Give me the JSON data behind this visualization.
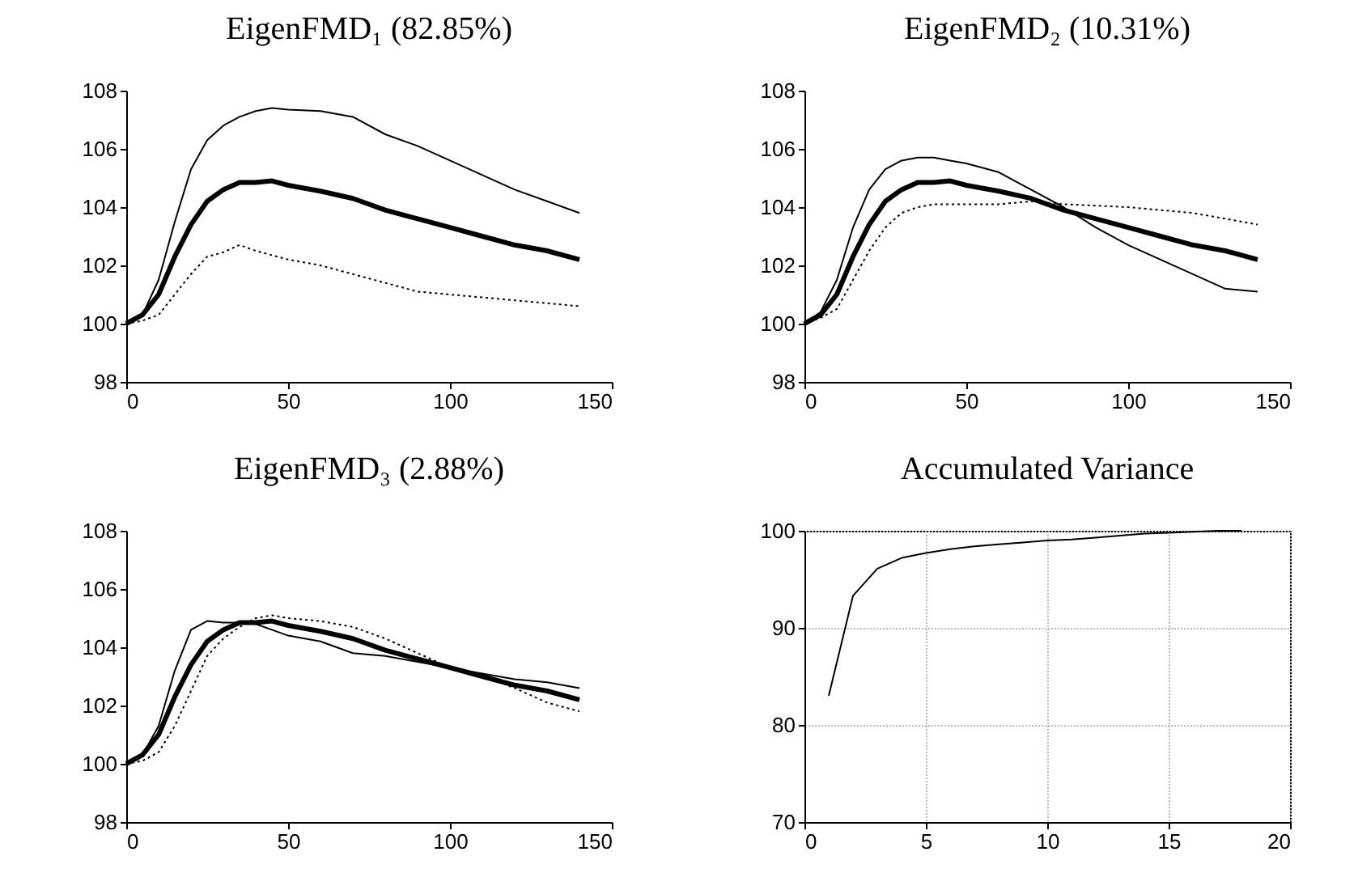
{
  "chart_data": [
    {
      "type": "line",
      "title": "EigenFMD₁ (82.85%)",
      "x": [
        0,
        5,
        10,
        15,
        20,
        25,
        30,
        35,
        40,
        45,
        50,
        60,
        70,
        80,
        90,
        100,
        110,
        120,
        130,
        140
      ],
      "xlim": [
        0,
        150
      ],
      "xticks": [
        0,
        50,
        100,
        150
      ],
      "ylim": [
        98,
        108
      ],
      "yticks": [
        98,
        100,
        102,
        104,
        106,
        108
      ],
      "grid": false,
      "marker": "none",
      "series": [
        {
          "color": "#000000",
          "line_style": "solid",
          "values": [
            100,
            100.3,
            101,
            102.3,
            103.4,
            104.2,
            104.6,
            104.85,
            104.85,
            104.9,
            104.75,
            104.55,
            104.3,
            103.9,
            103.6,
            103.3,
            103.0,
            102.7,
            102.5,
            102.2
          ]
        },
        {
          "color": "#000000",
          "line_style": "solid",
          "values": [
            100,
            100.3,
            101.5,
            103.5,
            105.3,
            106.3,
            106.8,
            107.1,
            107.3,
            107.4,
            107.35,
            107.3,
            107.1,
            106.5,
            106.1,
            105.6,
            105.1,
            104.6,
            104.2,
            103.8
          ]
        },
        {
          "color": "#000000",
          "line_style": "dotted",
          "values": [
            100,
            100.1,
            100.3,
            101.0,
            101.7,
            102.3,
            102.45,
            102.7,
            102.5,
            102.35,
            102.2,
            102.0,
            101.7,
            101.4,
            101.1,
            101.0,
            100.9,
            100.8,
            100.7,
            100.6
          ]
        }
      ]
    },
    {
      "type": "line",
      "title": "EigenFMD₂ (10.31%)",
      "x": [
        0,
        5,
        10,
        15,
        20,
        25,
        30,
        35,
        40,
        45,
        50,
        60,
        70,
        80,
        90,
        100,
        110,
        120,
        130,
        140
      ],
      "xlim": [
        0,
        150
      ],
      "xticks": [
        0,
        50,
        100,
        150
      ],
      "ylim": [
        98,
        108
      ],
      "yticks": [
        98,
        100,
        102,
        104,
        106,
        108
      ],
      "grid": false,
      "marker": "none",
      "series": [
        {
          "color": "#000000",
          "line_style": "solid",
          "values": [
            100,
            100.3,
            101,
            102.3,
            103.4,
            104.2,
            104.6,
            104.85,
            104.85,
            104.9,
            104.75,
            104.55,
            104.3,
            103.9,
            103.6,
            103.3,
            103.0,
            102.7,
            102.5,
            102.2
          ]
        },
        {
          "color": "#000000",
          "line_style": "solid",
          "values": [
            100,
            100.4,
            101.5,
            103.3,
            104.6,
            105.3,
            105.6,
            105.7,
            105.7,
            105.6,
            105.5,
            105.2,
            104.6,
            104.0,
            103.3,
            102.7,
            102.2,
            101.7,
            101.2,
            101.1
          ]
        },
        {
          "color": "#000000",
          "line_style": "dotted",
          "values": [
            100,
            100.2,
            100.5,
            101.5,
            102.5,
            103.3,
            103.8,
            104.0,
            104.1,
            104.1,
            104.1,
            104.1,
            104.2,
            104.1,
            104.05,
            104.0,
            103.9,
            103.8,
            103.6,
            103.4
          ]
        }
      ]
    },
    {
      "type": "line",
      "title": "EigenFMD₃ (2.88%)",
      "x": [
        0,
        5,
        10,
        15,
        20,
        25,
        30,
        35,
        40,
        45,
        50,
        60,
        70,
        80,
        90,
        100,
        110,
        120,
        130,
        140
      ],
      "xlim": [
        0,
        150
      ],
      "xticks": [
        0,
        50,
        100,
        150
      ],
      "ylim": [
        98,
        108
      ],
      "yticks": [
        98,
        100,
        102,
        104,
        106,
        108
      ],
      "grid": false,
      "marker": "none",
      "series": [
        {
          "color": "#000000",
          "line_style": "solid",
          "values": [
            100,
            100.3,
            101,
            102.3,
            103.4,
            104.2,
            104.6,
            104.85,
            104.85,
            104.9,
            104.75,
            104.55,
            104.3,
            103.9,
            103.6,
            103.3,
            103.0,
            102.7,
            102.5,
            102.2
          ]
        },
        {
          "color": "#000000",
          "line_style": "solid",
          "values": [
            100,
            100.3,
            101.3,
            103.2,
            104.6,
            104.9,
            104.85,
            104.85,
            104.8,
            104.6,
            104.4,
            104.2,
            103.8,
            103.7,
            103.5,
            103.3,
            103.1,
            102.9,
            102.8,
            102.6
          ]
        },
        {
          "color": "#000000",
          "line_style": "dotted",
          "values": [
            100,
            100.1,
            100.4,
            101.3,
            102.5,
            103.7,
            104.3,
            104.7,
            105.0,
            105.1,
            105.0,
            104.9,
            104.7,
            104.3,
            103.8,
            103.3,
            103.0,
            102.6,
            102.1,
            101.8
          ]
        }
      ]
    },
    {
      "type": "line",
      "title": "Accumulated Variance",
      "x": [
        1,
        2,
        3,
        4,
        5,
        6,
        7,
        8,
        9,
        10,
        11,
        12,
        13,
        14,
        15,
        16,
        17,
        18
      ],
      "xlim": [
        0,
        20
      ],
      "xticks": [
        0,
        5,
        10,
        15,
        20
      ],
      "ylim": [
        70,
        100
      ],
      "yticks": [
        70,
        80,
        90,
        100
      ],
      "grid": true,
      "marker": "none",
      "series": [
        {
          "color": "#000000",
          "line_style": "solid",
          "values": [
            83,
            93.3,
            96.1,
            97.2,
            97.7,
            98.1,
            98.4,
            98.6,
            98.8,
            99.0,
            99.1,
            99.3,
            99.5,
            99.7,
            99.8,
            99.9,
            100,
            100
          ]
        }
      ]
    }
  ]
}
